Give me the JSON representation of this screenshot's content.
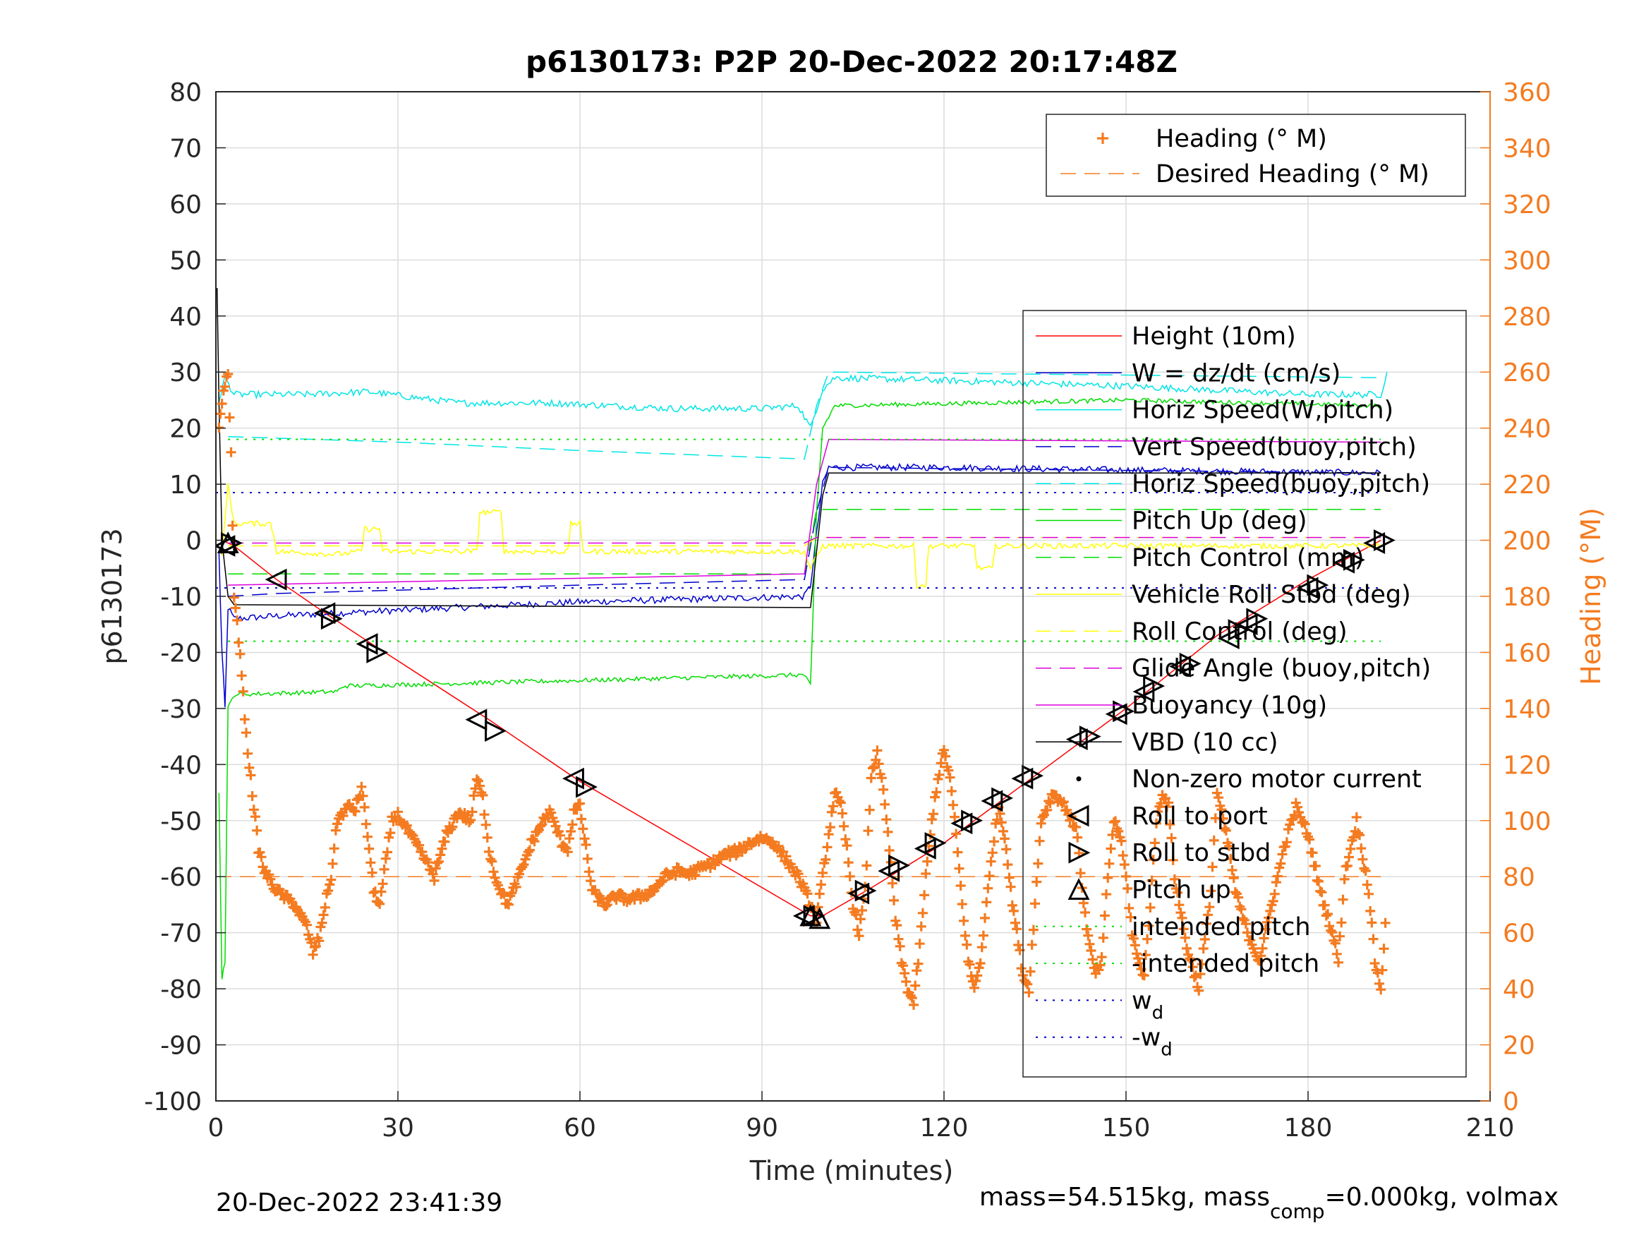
{
  "chart_data": {
    "type": "line",
    "title": "p6130173: P2P 20-Dec-2022 20:17:48Z",
    "xlabel": "Time (minutes)",
    "ylabel_left": "p6130173",
    "ylabel_right": "Heading (°M)",
    "xlim": [
      0,
      210
    ],
    "ylim_left": [
      -100,
      80
    ],
    "ylim_right": [
      0,
      360
    ],
    "x_ticks": [
      "0",
      "30",
      "60",
      "90",
      "120",
      "150",
      "180",
      "210"
    ],
    "y_left_ticks": [
      "80",
      "70",
      "60",
      "50",
      "40",
      "30",
      "20",
      "10",
      "0",
      "-10",
      "-20",
      "-30",
      "-40",
      "-50",
      "-60",
      "-70",
      "-80",
      "-90",
      "-100"
    ],
    "y_right_ticks": [
      "360",
      "340",
      "320",
      "300",
      "280",
      "260",
      "240",
      "220",
      "200",
      "180",
      "160",
      "140",
      "120",
      "100",
      "80",
      "60",
      "40",
      "20",
      "0"
    ],
    "grid": true,
    "legend_heading": [
      {
        "label": "Heading (° M)",
        "color": "#f47b20",
        "style": "plus"
      },
      {
        "label": "Desired Heading (° M)",
        "color": "#f47b20",
        "style": "dashed"
      }
    ],
    "legend_main": [
      {
        "label": "Height (10m)",
        "color": "#ff0000",
        "style": "solid"
      },
      {
        "label": "W = dz/dt (cm/s)",
        "color": "#0000cc",
        "style": "solid"
      },
      {
        "label": "Horiz Speed(W,pitch)",
        "color": "#00e5e5",
        "style": "solid"
      },
      {
        "label": "Vert Speed(buoy,pitch)",
        "color": "#0000cc",
        "style": "dashed"
      },
      {
        "label": "Horiz Speed(buoy,pitch)",
        "color": "#00e5e5",
        "style": "dashed"
      },
      {
        "label": "Pitch Up (deg)",
        "color": "#00dd00",
        "style": "solid"
      },
      {
        "label": "Pitch Control (mm)",
        "color": "#00dd00",
        "style": "dashed"
      },
      {
        "label": "Vehicle Roll Stbd (deg)",
        "color": "#ffff00",
        "style": "solid"
      },
      {
        "label": "Roll Control (deg)",
        "color": "#ffff00",
        "style": "dashed"
      },
      {
        "label": "Glide Angle (buoy,pitch)",
        "color": "#dd00dd",
        "style": "dashed"
      },
      {
        "label": "Buoyancy (10g)",
        "color": "#dd00dd",
        "style": "solid"
      },
      {
        "label": "VBD (10 cc)",
        "color": "#000000",
        "style": "solid"
      },
      {
        "label": "Non-zero motor current",
        "color": "#000000",
        "style": "dot"
      },
      {
        "label": "Roll to port",
        "color": "#000000",
        "style": "tri-left"
      },
      {
        "label": "Roll to stbd",
        "color": "#000000",
        "style": "tri-right"
      },
      {
        "label": "Pitch up",
        "color": "#000000",
        "style": "tri-up"
      },
      {
        "label": "intended pitch",
        "color": "#00dd00",
        "style": "dotted"
      },
      {
        "label": "-intended pitch",
        "color": "#00dd00",
        "style": "dotted"
      },
      {
        "label": "w",
        "sub": "d",
        "color": "#0000cc",
        "style": "dotted"
      },
      {
        "label": "-w",
        "sub": "d",
        "color": "#0000cc",
        "style": "dotted"
      }
    ],
    "series": [
      {
        "name": "Height (10m)",
        "color": "#ff0000",
        "width": 1.5,
        "x": [
          1,
          3,
          10,
          18,
          25,
          45,
          60,
          98,
          100,
          108,
          120,
          135,
          150,
          165,
          180,
          192
        ],
        "y": [
          0,
          -1,
          -7,
          -13,
          -18,
          -32,
          -43,
          -67,
          -67,
          -62,
          -54,
          -42,
          -30,
          -17,
          -7,
          0
        ]
      },
      {
        "name": "W = dz/dt (cm/s)",
        "color": "#0000cc",
        "width": 1.5,
        "noise": 0.6,
        "x": [
          0.5,
          1,
          1.5,
          2,
          3,
          10,
          30,
          60,
          97,
          98,
          100,
          101,
          120,
          150,
          192
        ],
        "y": [
          -2,
          -20,
          -30,
          -12,
          -14,
          -13.5,
          -12.5,
          -11,
          -10,
          -8,
          10,
          13,
          13,
          12.5,
          12
        ]
      },
      {
        "name": "Horiz Speed(W,pitch)",
        "color": "#00e5e5",
        "width": 1.5,
        "noise": 0.6,
        "x": [
          0.5,
          1.5,
          3,
          15,
          25,
          40,
          55,
          75,
          90,
          96,
          98,
          100,
          102,
          120,
          150,
          180,
          192,
          193
        ],
        "y": [
          25,
          29,
          26,
          26,
          26.5,
          24.5,
          24.5,
          23.5,
          23.5,
          24,
          20,
          27,
          29,
          28.5,
          27.5,
          26,
          26,
          30
        ]
      },
      {
        "name": "Vert Speed(buoy,pitch)",
        "color": "#0000cc",
        "width": 1.5,
        "dash": "22 12",
        "x": [
          2,
          10,
          60,
          97,
          99,
          101,
          192
        ],
        "y": [
          -10,
          -9.5,
          -8,
          -7,
          5,
          13,
          12
        ]
      },
      {
        "name": "Horiz Speed(buoy,pitch)",
        "color": "#00e5e5",
        "width": 1.5,
        "dash": "22 12",
        "x": [
          2,
          30,
          60,
          97,
          99,
          101,
          192
        ],
        "y": [
          18.5,
          17.5,
          16,
          14.5,
          24,
          30,
          29
        ]
      },
      {
        "name": "Pitch Up (deg)",
        "color": "#00dd00",
        "width": 1.5,
        "noise": 0.4,
        "x": [
          0.5,
          1,
          1.5,
          2,
          3,
          20,
          21,
          60,
          97,
          98,
          99,
          100,
          102,
          150,
          192
        ],
        "y": [
          -45,
          -78,
          -75,
          -30,
          -27.5,
          -27,
          -26,
          -25,
          -24,
          -26,
          5,
          20,
          24,
          25,
          24
        ]
      },
      {
        "name": "Pitch Control (mm)",
        "color": "#00dd00",
        "width": 1.5,
        "dash": "22 12",
        "x": [
          2,
          97,
          99,
          192
        ],
        "y": [
          -6,
          -6,
          5.5,
          5.5
        ]
      },
      {
        "name": "Vehicle Roll Stbd (deg)",
        "color": "#ffff00",
        "width": 1.5,
        "noise": 0.5,
        "x": [
          1,
          2,
          3,
          9,
          9.5,
          10,
          20,
          24,
          24.5,
          27,
          27.5,
          43,
          43.5,
          47,
          47.5,
          58,
          58.5,
          60,
          60.5,
          97,
          98,
          100,
          115,
          115.5,
          117,
          117.5,
          125,
          125.5,
          128,
          128.5,
          192
        ],
        "y": [
          -3,
          10,
          3,
          3,
          1,
          -2,
          -2.5,
          -2,
          2,
          2,
          -2,
          -2,
          5,
          5,
          -2,
          -2,
          3,
          3,
          -2,
          -2,
          -5,
          -1,
          -1,
          -8,
          -8,
          -1,
          -1,
          -5,
          -5,
          -1,
          -1
        ]
      },
      {
        "name": "Roll Control (deg)",
        "color": "#ffff00",
        "width": 1.5,
        "dash": "22 12",
        "x": [
          2,
          97,
          99,
          192
        ],
        "y": [
          -1,
          -1,
          0.5,
          0.5
        ]
      },
      {
        "name": "Glide Angle (buoy,pitch)",
        "color": "#dd00dd",
        "width": 1.5,
        "dash": "22 12",
        "x": [
          2,
          97,
          99,
          192
        ],
        "y": [
          -0.5,
          -0.5,
          0.5,
          0.5
        ]
      },
      {
        "name": "Buoyancy (10g)",
        "color": "#dd00dd",
        "width": 1.5,
        "x": [
          2,
          97,
          99,
          101,
          192
        ],
        "y": [
          -8,
          -6,
          10,
          18,
          17.5
        ]
      },
      {
        "name": "VBD (10 cc)",
        "color": "#000000",
        "width": 1.5,
        "x": [
          0.2,
          0.5,
          1,
          2,
          3,
          97,
          98,
          100,
          101,
          192
        ],
        "y": [
          45,
          25,
          0,
          -10,
          -11.5,
          -12,
          -12,
          8,
          12,
          12
        ]
      },
      {
        "name": "intended pitch",
        "color": "#00dd00",
        "width": 2,
        "dash": "3 9",
        "x": [
          2,
          192
        ],
        "y": [
          18,
          18
        ]
      },
      {
        "name": "-intended pitch",
        "color": "#00dd00",
        "width": 2,
        "dash": "3 9",
        "x": [
          2,
          192
        ],
        "y": [
          -18,
          -18
        ]
      },
      {
        "name": "w",
        "color": "#0000cc",
        "width": 2,
        "dash": "3 9",
        "x": [
          0,
          192
        ],
        "y": [
          8.5,
          8.5
        ]
      },
      {
        "name": "-w",
        "color": "#0000cc",
        "width": 2,
        "dash": "3 9",
        "x": [
          0,
          192
        ],
        "y": [
          -8.5,
          -8.5
        ]
      }
    ],
    "desired_heading": {
      "value": 80,
      "xlim": [
        0,
        192
      ],
      "color": "#f47b20"
    },
    "heading_trace": {
      "color": "#f47b20",
      "x": [
        0.5,
        1,
        2,
        2.5,
        3,
        3.5,
        4,
        5,
        6,
        7,
        8,
        10,
        13,
        15,
        16,
        17,
        18,
        19,
        20,
        21,
        22,
        23,
        24,
        25,
        26,
        27,
        28,
        29,
        30,
        32,
        34,
        36,
        38,
        40,
        42,
        43,
        44,
        45,
        46,
        47,
        48,
        50,
        52,
        54,
        55,
        56,
        57,
        58,
        59,
        60,
        62,
        64,
        66,
        68,
        70,
        72,
        74,
        76,
        78,
        80,
        82,
        84,
        86,
        88,
        90,
        92,
        94,
        96,
        97,
        98,
        99,
        100,
        101,
        102,
        103,
        104,
        105,
        106,
        107,
        108,
        109,
        110,
        111,
        112,
        113,
        114,
        115,
        116,
        117,
        118,
        119,
        120,
        121,
        122,
        123,
        124,
        125,
        126,
        127,
        128,
        129,
        130,
        131,
        132,
        133,
        134,
        135,
        136,
        138,
        140,
        142,
        143,
        144,
        145,
        146,
        147,
        148,
        149,
        150,
        151,
        152,
        153,
        154,
        155,
        156,
        157,
        158,
        160,
        162,
        164,
        165,
        166,
        167,
        168,
        170,
        172,
        174,
        176,
        178,
        180,
        182,
        184,
        185,
        186,
        188,
        190,
        191,
        192,
        193
      ],
      "y": [
        240,
        250,
        260,
        230,
        180,
        170,
        160,
        130,
        110,
        90,
        82,
        75,
        70,
        62,
        53,
        58,
        70,
        80,
        100,
        103,
        105,
        104,
        112,
        95,
        75,
        70,
        85,
        100,
        102,
        95,
        88,
        80,
        95,
        103,
        100,
        115,
        108,
        90,
        80,
        75,
        70,
        80,
        92,
        100,
        103,
        98,
        92,
        90,
        103,
        105,
        75,
        70,
        73,
        72,
        73,
        75,
        80,
        82,
        81,
        83,
        85,
        88,
        89,
        92,
        94,
        92,
        86,
        80,
        75,
        70,
        65,
        80,
        95,
        110,
        105,
        90,
        70,
        60,
        75,
        115,
        125,
        110,
        90,
        65,
        50,
        40,
        35,
        55,
        80,
        100,
        115,
        125,
        115,
        95,
        70,
        50,
        40,
        50,
        70,
        90,
        105,
        95,
        75,
        60,
        45,
        40,
        70,
        100,
        110,
        105,
        95,
        70,
        55,
        45,
        50,
        80,
        100,
        95,
        80,
        60,
        50,
        45,
        70,
        100,
        110,
        105,
        80,
        55,
        40,
        75,
        110,
        100,
        90,
        75,
        60,
        50,
        70,
        90,
        105,
        95,
        75,
        60,
        50,
        80,
        100,
        75,
        50,
        40,
        70
      ]
    },
    "roll_markers": [
      {
        "x": 1.5,
        "y": -1,
        "dir": "left"
      },
      {
        "x": 2.5,
        "y": -0.5,
        "dir": "right"
      },
      {
        "x": 10,
        "y": -7,
        "dir": "left"
      },
      {
        "x": 18,
        "y": -13,
        "dir": "left"
      },
      {
        "x": 19,
        "y": -14,
        "dir": "right"
      },
      {
        "x": 25,
        "y": -18.5,
        "dir": "left"
      },
      {
        "x": 26.5,
        "y": -20,
        "dir": "right"
      },
      {
        "x": 43,
        "y": -32,
        "dir": "left"
      },
      {
        "x": 46,
        "y": -34,
        "dir": "right"
      },
      {
        "x": 59,
        "y": -42.5,
        "dir": "left"
      },
      {
        "x": 61,
        "y": -44,
        "dir": "right"
      },
      {
        "x": 97,
        "y": -67,
        "dir": "left"
      },
      {
        "x": 98.5,
        "y": -67,
        "dir": "right"
      },
      {
        "x": 106,
        "y": -63,
        "dir": "left"
      },
      {
        "x": 107,
        "y": -62.5,
        "dir": "right"
      },
      {
        "x": 111,
        "y": -59,
        "dir": "left"
      },
      {
        "x": 112.5,
        "y": -58,
        "dir": "right"
      },
      {
        "x": 117,
        "y": -55,
        "dir": "left"
      },
      {
        "x": 118.5,
        "y": -54,
        "dir": "right"
      },
      {
        "x": 123,
        "y": -50.5,
        "dir": "left"
      },
      {
        "x": 124.5,
        "y": -50,
        "dir": "right"
      },
      {
        "x": 128,
        "y": -46.5,
        "dir": "left"
      },
      {
        "x": 129.5,
        "y": -46,
        "dir": "right"
      },
      {
        "x": 133,
        "y": -42.5,
        "dir": "left"
      },
      {
        "x": 134.5,
        "y": -42,
        "dir": "right"
      },
      {
        "x": 142,
        "y": -35.5,
        "dir": "left"
      },
      {
        "x": 144,
        "y": -35,
        "dir": "right"
      },
      {
        "x": 148.5,
        "y": -31,
        "dir": "left"
      },
      {
        "x": 149.5,
        "y": -30.5,
        "dir": "right"
      },
      {
        "x": 153,
        "y": -27,
        "dir": "left"
      },
      {
        "x": 154.5,
        "y": -26,
        "dir": "right"
      },
      {
        "x": 159,
        "y": -22.5,
        "dir": "left"
      },
      {
        "x": 160.5,
        "y": -22,
        "dir": "right"
      },
      {
        "x": 167,
        "y": -17.5,
        "dir": "left"
      },
      {
        "x": 168.5,
        "y": -16,
        "dir": "right"
      },
      {
        "x": 170,
        "y": -15,
        "dir": "left"
      },
      {
        "x": 171.5,
        "y": -14,
        "dir": "right"
      },
      {
        "x": 180,
        "y": -8.5,
        "dir": "left"
      },
      {
        "x": 181.5,
        "y": -8,
        "dir": "right"
      },
      {
        "x": 186,
        "y": -4,
        "dir": "left"
      },
      {
        "x": 187.5,
        "y": -3.5,
        "dir": "right"
      },
      {
        "x": 191,
        "y": -0.5,
        "dir": "left"
      },
      {
        "x": 192.5,
        "y": 0,
        "dir": "right"
      }
    ],
    "pitch_markers": [
      {
        "x": 2,
        "y": -0.5
      },
      {
        "x": 98,
        "y": -67
      },
      {
        "x": 99.5,
        "y": -67.5
      }
    ]
  },
  "footer": {
    "left_timestamp": "20-Dec-2022 23:41:39",
    "mass_text": "mass=54.515kg, mass",
    "mass_sub": "comp",
    "mass_text_tail": "=0.000kg, volmax"
  }
}
